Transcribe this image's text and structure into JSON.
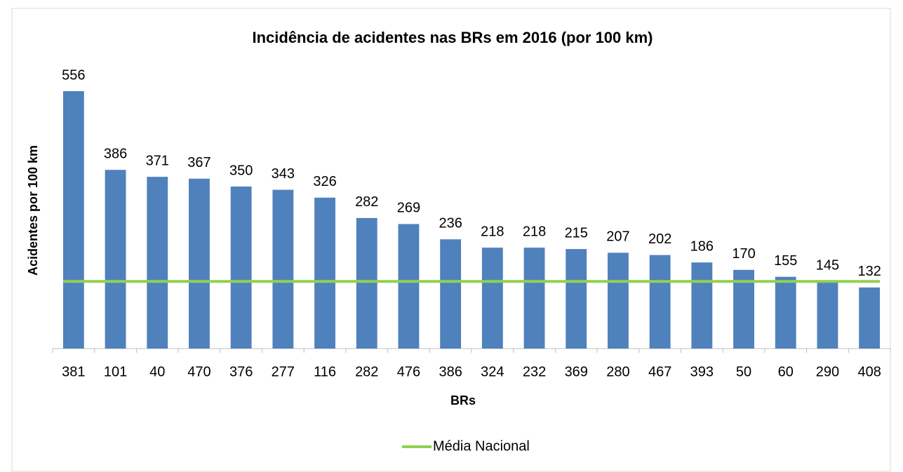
{
  "chart_data": {
    "type": "bar",
    "title": "Incidência de acidentes nas BRs em 2016 (por 100 km)",
    "x_label": "BRs",
    "y_label": "Acidentes por 100 km",
    "categories": [
      "381",
      "101",
      "40",
      "470",
      "376",
      "277",
      "116",
      "282",
      "476",
      "386",
      "324",
      "232",
      "369",
      "280",
      "467",
      "393",
      "50",
      "60",
      "290",
      "408"
    ],
    "values": [
      556,
      386,
      371,
      367,
      350,
      343,
      326,
      282,
      269,
      236,
      218,
      218,
      215,
      207,
      202,
      186,
      170,
      155,
      145,
      132
    ],
    "color": "#4f81bd",
    "reference_line": {
      "name": "Média Nacional",
      "value": 145,
      "color": "#92d050"
    },
    "legend": "bottom"
  }
}
